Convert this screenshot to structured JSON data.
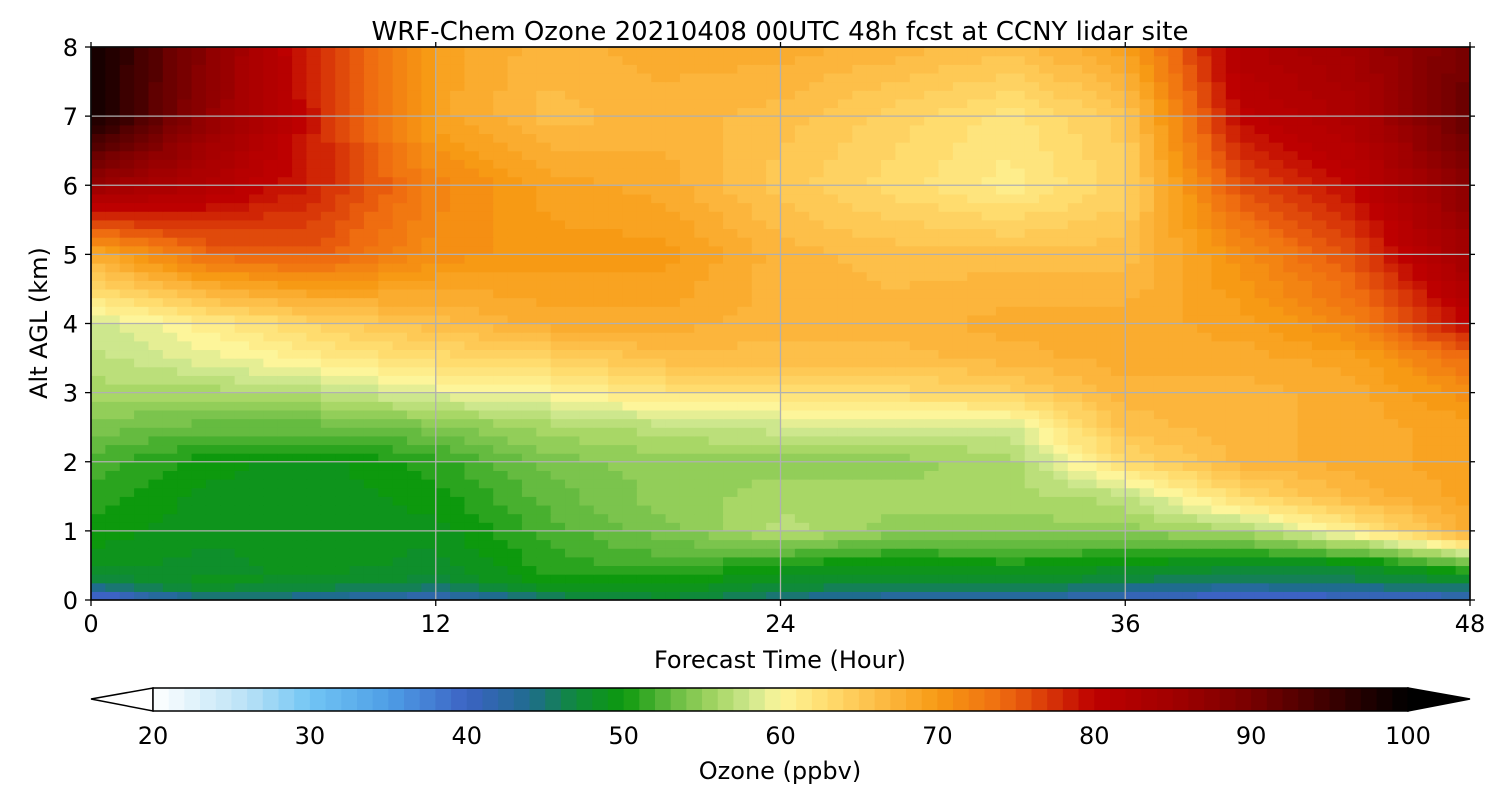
{
  "chart_data": {
    "type": "heatmap",
    "title": "WRF-Chem Ozone  20210408 00UTC 48h fcst at CCNY lidar site",
    "xlabel": "Forecast Time (Hour)",
    "ylabel": "Alt AGL (km)",
    "xlim": [
      0,
      48
    ],
    "ylim": [
      0,
      8
    ],
    "xticks": [
      "0",
      "12",
      "24",
      "36",
      "48"
    ],
    "xtick_values": [
      0,
      12,
      24,
      36,
      48
    ],
    "yticks": [
      "0",
      "1",
      "2",
      "3",
      "4",
      "5",
      "6",
      "7",
      "8"
    ],
    "ytick_values": [
      0,
      1,
      2,
      3,
      4,
      5,
      6,
      7,
      8
    ],
    "grid": true,
    "z_times": [
      0,
      4,
      8,
      12,
      16,
      20,
      24,
      28,
      32,
      36,
      40,
      44,
      48
    ],
    "z_altitudes": [
      0,
      0.25,
      0.5,
      1,
      1.5,
      2,
      2.5,
      3,
      3.5,
      4,
      5,
      6,
      7,
      8
    ],
    "z_values": [
      [
        37,
        44,
        43,
        40,
        45,
        47,
        44,
        42,
        42,
        40,
        38,
        39,
        40
      ],
      [
        46,
        49,
        48,
        47,
        50,
        50,
        48,
        47,
        48,
        46,
        45,
        46,
        47
      ],
      [
        49,
        48,
        49,
        48,
        51,
        52,
        50,
        49,
        50,
        49,
        48,
        48,
        52
      ],
      [
        50,
        49,
        49,
        49,
        52,
        54,
        57,
        55,
        55,
        55,
        56,
        61,
        68
      ],
      [
        51,
        49,
        49,
        50,
        53,
        55,
        56,
        56,
        56,
        57,
        63,
        67,
        69
      ],
      [
        52,
        50,
        49,
        51,
        54,
        55,
        55,
        55,
        56,
        63,
        67,
        68,
        69
      ],
      [
        54,
        53,
        53,
        54,
        56,
        57,
        58,
        58,
        58,
        66,
        67,
        68,
        69
      ],
      [
        56,
        56,
        57,
        59,
        60,
        62,
        62,
        63,
        64,
        67,
        67,
        68,
        71
      ],
      [
        57,
        59,
        61,
        63,
        64,
        66,
        66,
        66,
        67,
        68,
        68,
        69,
        74
      ],
      [
        58,
        61,
        64,
        66,
        68,
        68,
        67,
        67,
        68,
        68,
        69,
        72,
        80
      ],
      [
        68,
        74,
        75,
        71,
        70,
        70,
        67,
        66,
        66,
        66,
        71,
        76,
        85
      ],
      [
        86,
        82,
        78,
        72,
        69,
        68,
        65,
        63,
        61,
        64,
        76,
        80,
        88
      ],
      [
        99,
        87,
        78,
        69,
        66,
        67,
        66,
        64,
        62,
        65,
        80,
        83,
        92
      ],
      [
        99,
        88,
        77,
        69,
        67,
        68,
        68,
        67,
        66,
        69,
        82,
        85,
        90
      ]
    ],
    "colorbar": {
      "label": "Ozone  (ppbv)",
      "ticks": [
        "20",
        "30",
        "40",
        "50",
        "60",
        "70",
        "80",
        "90",
        "100"
      ],
      "tick_values": [
        20,
        30,
        40,
        50,
        60,
        70,
        80,
        90,
        100
      ],
      "min": 20,
      "max": 100,
      "extend": "both",
      "under_color": "#ffffff",
      "over_color": "#000000"
    },
    "colors": {
      "20": "#ffffff",
      "26": "#b9e2f6",
      "30": "#72c5f4",
      "35": "#4e9ee6",
      "40": "#3c63c4",
      "44": "#1f6c8e",
      "47": "#0f8a3a",
      "50": "#0d990d",
      "53": "#65bb40",
      "56": "#a8d766",
      "58": "#cde78d",
      "60": "#fdf59a",
      "63": "#ffdc6e",
      "67": "#fcb53c",
      "70": "#f79a14",
      "74": "#ef6d10",
      "77": "#d93808",
      "80": "#bd0000",
      "85": "#a10000",
      "90": "#780000",
      "95": "#3c0000",
      "100": "#000000"
    }
  }
}
